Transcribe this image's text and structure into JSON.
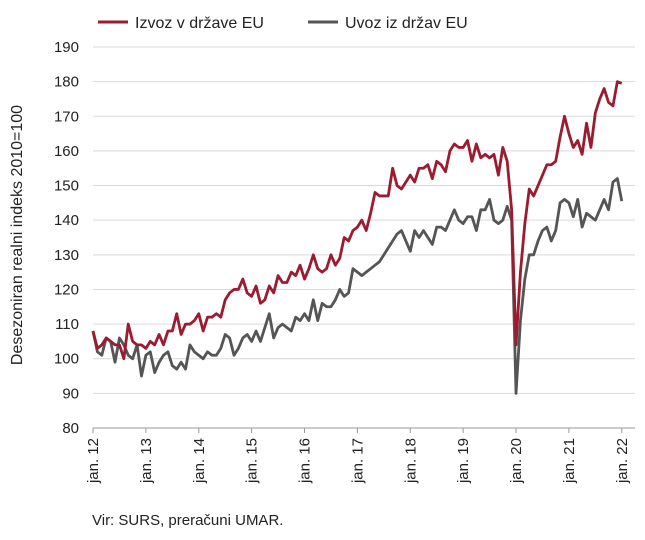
{
  "chart_data": {
    "type": "line",
    "ylabel": "Desezoniran realni indeks 2010=100",
    "ylim": [
      80,
      190
    ],
    "yticks": [
      80,
      90,
      100,
      110,
      120,
      130,
      140,
      150,
      160,
      170,
      180,
      190
    ],
    "xlim": [
      "2012-01",
      "2022-04"
    ],
    "xticks": [
      "jan. 12",
      "jan. 13",
      "jan. 14",
      "jan. 15",
      "jan. 16",
      "jan. 17",
      "jan. 18",
      "jan. 19",
      "jan. 20",
      "jan. 21",
      "jan. 22"
    ],
    "grid": "horizontal",
    "legend": "top",
    "source": "Vir: SURS, preračuni UMAR.",
    "series": [
      {
        "name": "Izvoz v države EU",
        "color": "#9b1b30",
        "start": "2012-01",
        "values": [
          108,
          103,
          104,
          106,
          105,
          104,
          104,
          100,
          110,
          105,
          104,
          104,
          103,
          105,
          104,
          107,
          104,
          108,
          108,
          113,
          107,
          110,
          110,
          111,
          113,
          108,
          112,
          112,
          113,
          112,
          117,
          119,
          120,
          120,
          123,
          119,
          118,
          121,
          116,
          117,
          121,
          119,
          124,
          122,
          122,
          125,
          124,
          127,
          123,
          126,
          130,
          126,
          125,
          126,
          130,
          127,
          129,
          135,
          134,
          137,
          138,
          140,
          137,
          142,
          148,
          147,
          147,
          147,
          155,
          150,
          149,
          151,
          153,
          151,
          155,
          155,
          156,
          152,
          157,
          156,
          154,
          160,
          162,
          161,
          161,
          163,
          157,
          162,
          158,
          159,
          158,
          159,
          153,
          161,
          157,
          143,
          104,
          125,
          139,
          149,
          147,
          150,
          153,
          156,
          156,
          157,
          164,
          170,
          165,
          161,
          163,
          159,
          168,
          161,
          171,
          175,
          178,
          174,
          173,
          180,
          179.5
        ]
      },
      {
        "name": "Uvoz iz držav EU",
        "color": "#555555",
        "start": "2012-01",
        "values": [
          108,
          102,
          101,
          106,
          105,
          99,
          106,
          104,
          101,
          100,
          104,
          95,
          101,
          102,
          96,
          99,
          101,
          102,
          98,
          97,
          99,
          97,
          104,
          102,
          101,
          100,
          102,
          101,
          101,
          103,
          107,
          106,
          101,
          103,
          106,
          107,
          105,
          108,
          105,
          109,
          113,
          106,
          109,
          110,
          109,
          108,
          112,
          111,
          113,
          111,
          117,
          111,
          116,
          115,
          115,
          117,
          120,
          118,
          119,
          126,
          125,
          124,
          125,
          126,
          127,
          128,
          130,
          132,
          134,
          136,
          137,
          134,
          131,
          137,
          135,
          137,
          135,
          133,
          138,
          138,
          137,
          140,
          143,
          140,
          139,
          141,
          141,
          137,
          143,
          143,
          146,
          140,
          139,
          140,
          144,
          140,
          90,
          111,
          123,
          130,
          130,
          134,
          137,
          138,
          134,
          137,
          145,
          146,
          145,
          141,
          146,
          138,
          142,
          141,
          140,
          143,
          146,
          143,
          151,
          152,
          145.5
        ]
      }
    ]
  }
}
